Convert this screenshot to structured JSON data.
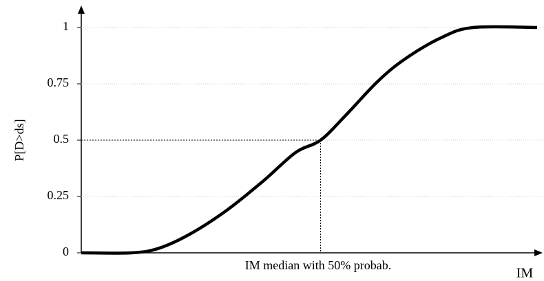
{
  "chart_data": {
    "type": "line",
    "y_label": "P[D>ds]",
    "x_label": "IM",
    "annotation": "IM median with 50% probab.",
    "x": [
      0,
      1.1,
      1.7,
      2.4,
      3.2,
      4,
      4.7,
      5.25,
      5.8,
      6.5,
      7.1,
      7.9,
      8.6,
      10
    ],
    "values": [
      0,
      0,
      0.02,
      0.085,
      0.19,
      0.32,
      0.445,
      0.5,
      0.61,
      0.76,
      0.86,
      0.955,
      1,
      1
    ],
    "color": "#000000",
    "median": {
      "x": 5.25,
      "y": 0.5
    },
    "xlim": [
      0,
      10
    ],
    "ylim": [
      0,
      1
    ],
    "yticks": [
      0,
      0.25,
      0.5,
      0.75,
      1
    ],
    "grid": true
  }
}
